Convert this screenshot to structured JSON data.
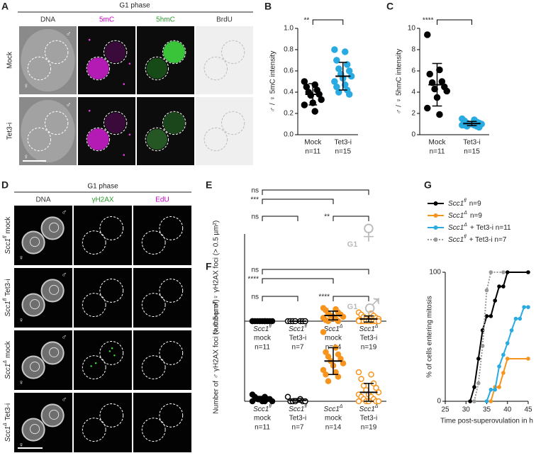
{
  "panel_labels": [
    "A",
    "B",
    "C",
    "D",
    "E",
    "F",
    "G"
  ],
  "symbols": {
    "male": "♂",
    "female": "♀"
  },
  "panel_a": {
    "title": "G1 phase",
    "columns": [
      {
        "label": "DNA",
        "color": "#333333"
      },
      {
        "label": "5mC",
        "color": "#cc00cc"
      },
      {
        "label": "5hmC",
        "color": "#2e9e2e"
      },
      {
        "label": "BrdU",
        "color": "#333333"
      }
    ],
    "rows": [
      "Mock",
      "Tet3-i"
    ]
  },
  "panel_d": {
    "title": "G1 phase",
    "columns": [
      {
        "label": "DNA",
        "color": "#333333"
      },
      {
        "label": "γH2AX",
        "color": "#2e9e2e"
      },
      {
        "label": "EdU",
        "color": "#cc00cc"
      }
    ],
    "rows": [
      {
        "gene": "Scc1",
        "allele": "fl",
        "treatment": "mock"
      },
      {
        "gene": "Scc1",
        "allele": "fl",
        "treatment": "Tet3-i"
      },
      {
        "gene": "Scc1",
        "allele": "Δ",
        "treatment": "mock"
      },
      {
        "gene": "Scc1",
        "allele": "Δ",
        "treatment": "Tet3-i"
      }
    ]
  },
  "chart_data": [
    {
      "type": "strip",
      "ylabel": "♂ / ♀  5mC intensity",
      "categories": [
        "Mock",
        "Tet3-i"
      ],
      "n_labels": [
        "n=11",
        "n=15"
      ],
      "colors": [
        "#000000",
        "#29abe2"
      ],
      "filled": [
        true,
        true
      ],
      "values": [
        [
          0.5,
          0.47,
          0.45,
          0.42,
          0.4,
          0.38,
          0.37,
          0.33,
          0.3,
          0.28,
          0.22
        ],
        [
          0.8,
          0.78,
          0.7,
          0.66,
          0.62,
          0.6,
          0.57,
          0.55,
          0.53,
          0.5,
          0.47,
          0.45,
          0.42,
          0.4,
          0.38
        ]
      ],
      "means": [
        0.38,
        0.55
      ],
      "errors": [
        0.1,
        0.13
      ],
      "ylim": [
        0,
        1
      ],
      "yticks": [
        {
          "value": 0,
          "label": "0.0"
        },
        {
          "value": 0.2,
          "label": "0.2"
        },
        {
          "value": 0.4,
          "label": "0.4"
        },
        {
          "value": 0.6,
          "label": "0.6"
        },
        {
          "value": 0.8,
          "label": "0.8"
        },
        {
          "value": 1,
          "label": "1.0"
        }
      ],
      "comparisons": [
        {
          "groups": [
            0,
            1
          ],
          "label": "**"
        }
      ]
    },
    {
      "type": "strip",
      "ylabel": "♂ / ♀  5hmC intensity",
      "categories": [
        "Mock",
        "Tet3-i"
      ],
      "n_labels": [
        "n=11",
        "n=15"
      ],
      "colors": [
        "#000000",
        "#29abe2"
      ],
      "filled": [
        true,
        true
      ],
      "values": [
        [
          9.4,
          6.1,
          5.7,
          5.0,
          4.9,
          4.5,
          4.3,
          4.1,
          3.5,
          2.5,
          1.9
        ],
        [
          1.5,
          1.4,
          1.3,
          1.2,
          1.1,
          1.1,
          1.0,
          1.0,
          1.0,
          0.9,
          0.9,
          0.9,
          0.8,
          0.8,
          0.7
        ]
      ],
      "means": [
        4.7,
        1.05
      ],
      "errors": [
        2.0,
        0.2
      ],
      "ylim": [
        0,
        10
      ],
      "yticks": [
        0,
        2,
        4,
        6,
        8,
        10
      ],
      "comparisons": [
        {
          "groups": [
            0,
            1
          ],
          "label": "****"
        }
      ]
    },
    {
      "type": "strip",
      "ylabel": "Number of ♀ γH2AX foci (> 0.5 µm²)",
      "categories": [
        "mock",
        "Tet3-i",
        "mock",
        "Tet3-i"
      ],
      "genotypes": [
        {
          "gene": "Scc1",
          "allele": "fl"
        },
        {
          "gene": "Scc1",
          "allele": "fl"
        },
        {
          "gene": "Scc1",
          "allele": "Δ"
        },
        {
          "gene": "Scc1",
          "allele": "Δ"
        }
      ],
      "n_labels": [
        "n=11",
        "n=7",
        "n=14",
        "n=19"
      ],
      "colors": [
        "#000000",
        "#000000",
        "#f7941d",
        "#f7941d"
      ],
      "filled": [
        true,
        false,
        true,
        false
      ],
      "values": [
        [
          0,
          0,
          0,
          0,
          0,
          0,
          0,
          0,
          0,
          0,
          0
        ],
        [
          0,
          0,
          0,
          0,
          0,
          0,
          0
        ],
        [
          6,
          5.5,
          5,
          4,
          3.5,
          3,
          2.5,
          2,
          2,
          1.5,
          1,
          0.5,
          0,
          0
        ],
        [
          4,
          3.5,
          3,
          2.5,
          2,
          1.5,
          1,
          1,
          0.5,
          0.5,
          0,
          0,
          0,
          0,
          0,
          0,
          0,
          0,
          0
        ]
      ],
      "means": [
        0,
        0,
        2.6,
        1
      ],
      "errors": [
        0,
        0,
        2,
        1.4
      ],
      "ylim": [
        0,
        40
      ],
      "comparisons": [
        {
          "groups": [
            0,
            3
          ],
          "label": "ns"
        },
        {
          "groups": [
            0,
            2
          ],
          "label": "***"
        },
        {
          "groups": [
            0,
            1
          ],
          "label": "ns"
        },
        {
          "groups": [
            2,
            3
          ],
          "label": "**"
        }
      ],
      "symbol": "♀",
      "annotation": "G1"
    },
    {
      "type": "strip",
      "ylabel": "Number of ♂ γH2AX foci (> 0.5 µm²)",
      "categories": [
        "mock",
        "Tet3-i",
        "mock",
        "Tet3-i"
      ],
      "genotypes": [
        {
          "gene": "Scc1",
          "allele": "fl"
        },
        {
          "gene": "Scc1",
          "allele": "fl"
        },
        {
          "gene": "Scc1",
          "allele": "Δ"
        },
        {
          "gene": "Scc1",
          "allele": "Δ"
        }
      ],
      "n_labels": [
        "n=11",
        "n=7",
        "n=14",
        "n=19"
      ],
      "colors": [
        "#000000",
        "#000000",
        "#f7941d",
        "#f7941d"
      ],
      "filled": [
        true,
        false,
        true,
        false
      ],
      "values": [
        [
          3,
          2,
          2,
          1,
          1,
          1,
          1,
          0,
          0,
          0,
          0
        ],
        [
          2,
          1,
          0,
          0,
          0,
          0,
          0
        ],
        [
          31,
          24,
          22,
          21,
          20,
          19,
          18,
          17,
          16,
          14,
          13,
          12,
          11,
          9
        ],
        [
          13,
          12,
          10,
          8,
          7,
          6,
          5,
          4,
          3,
          3,
          2,
          2,
          1,
          1,
          0,
          0,
          0,
          0,
          0
        ]
      ],
      "means": [
        1,
        0.4,
        18,
        4
      ],
      "errors": [
        1.2,
        0.8,
        6,
        4
      ],
      "ylim": [
        0,
        40
      ],
      "comparisons": [
        {
          "groups": [
            0,
            3
          ],
          "label": "ns"
        },
        {
          "groups": [
            0,
            2
          ],
          "label": "****"
        },
        {
          "groups": [
            0,
            1
          ],
          "label": "ns"
        },
        {
          "groups": [
            2,
            3
          ],
          "label": "****"
        }
      ],
      "symbol": "♂",
      "annotation": "G1"
    },
    {
      "type": "line",
      "xlabel": "Time post-superovulation in h",
      "ylabel": "% of cells entering mitosis",
      "xlim": [
        25,
        45
      ],
      "xticks": [
        25,
        30,
        35,
        40,
        45
      ],
      "ylim": [
        0,
        100
      ],
      "yticks": [
        0,
        100
      ],
      "series": [
        {
          "gene": "Scc1",
          "allele": "fl",
          "rest": "n=9",
          "color": "#000000",
          "dashed": false,
          "x": [
            31,
            32,
            33,
            34,
            35,
            36,
            37,
            38,
            39,
            40,
            45
          ],
          "values": [
            0,
            11,
            33,
            55,
            66,
            66,
            78,
            89,
            89,
            100,
            100
          ]
        },
        {
          "gene": "Scc1",
          "allele": "Δ",
          "rest": "n=9",
          "color": "#f7941d",
          "dashed": false,
          "x": [
            36,
            37,
            38,
            39,
            40,
            45
          ],
          "values": [
            0,
            11,
            11,
            22,
            33,
            33
          ]
        },
        {
          "gene": "Scc1",
          "allele": "Δ",
          "rest": "+ Tet3-i n=11",
          "color": "#29abe2",
          "dashed": false,
          "x": [
            35,
            36,
            37,
            38,
            39,
            40,
            41,
            42,
            43,
            44,
            45
          ],
          "values": [
            0,
            9,
            9,
            27,
            36,
            45,
            55,
            64,
            64,
            73,
            73
          ]
        },
        {
          "gene": "Scc1",
          "allele": "fl",
          "rest": "+ Tet3-i n=7",
          "color": "#999999",
          "dashed": true,
          "x": [
            32,
            33,
            34,
            35,
            36,
            39
          ],
          "values": [
            0,
            14,
            43,
            86,
            100,
            100
          ]
        }
      ]
    }
  ]
}
